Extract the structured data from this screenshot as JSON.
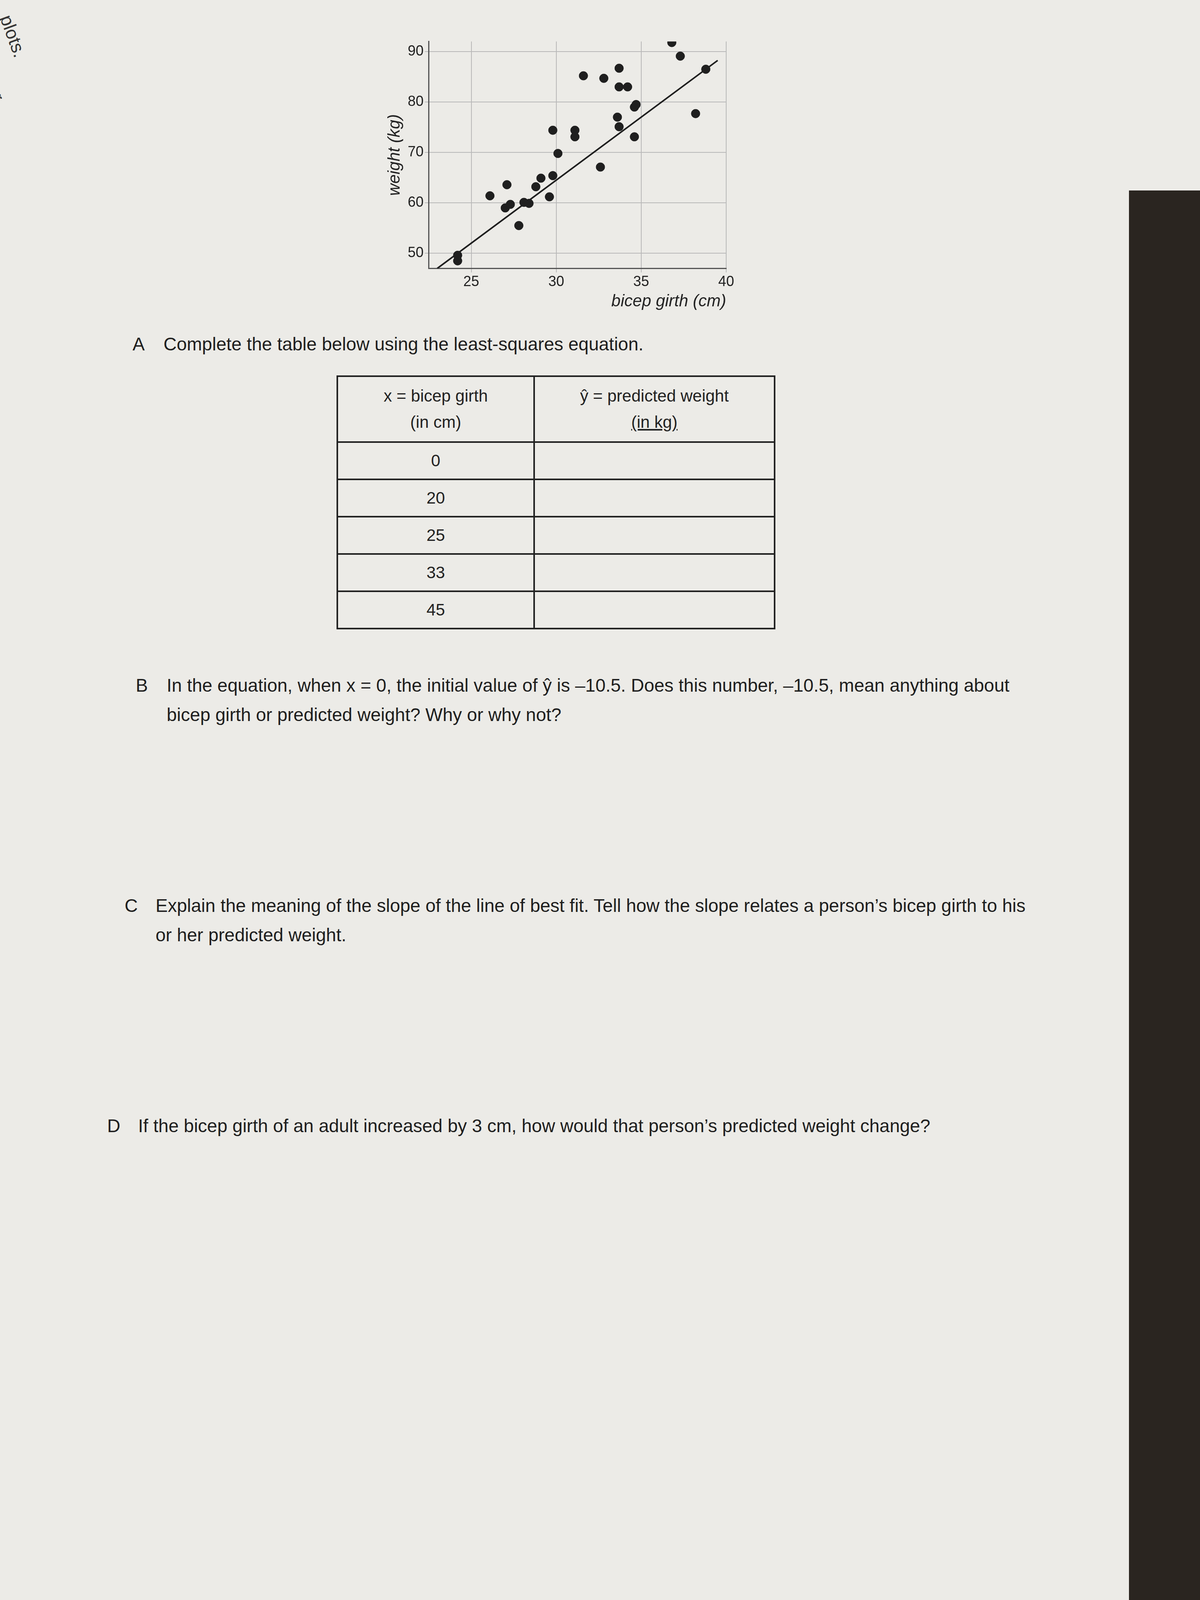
{
  "chart_data": {
    "type": "scatter",
    "x_label": "bicep girth (cm)",
    "y_label": "weight (kg)",
    "xlim": [
      22.5,
      40
    ],
    "ylim": [
      47,
      92
    ],
    "xticks": [
      25,
      30,
      35,
      40
    ],
    "yticks": [
      50,
      60,
      70,
      80,
      90
    ],
    "grid": true,
    "series": [
      {
        "type": "scatter",
        "color": "#1f1f1f",
        "marker": "circle",
        "x": [
          24.2,
          24.2,
          26.1,
          27.1,
          27.0,
          27.3,
          27.8,
          28.1,
          28.4,
          28.8,
          29.1,
          29.6,
          29.8,
          30.1,
          29.8,
          31.1,
          31.1,
          31.6,
          32.6,
          32.8,
          33.7,
          33.7,
          34.2,
          33.6,
          33.7,
          34.6,
          34.7,
          34.6,
          36.8,
          37.3,
          38.8,
          38.2
        ],
        "values": [
          49.6,
          48.5,
          61.4,
          63.6,
          59.0,
          59.7,
          55.5,
          60.1,
          59.9,
          63.2,
          64.9,
          61.2,
          65.4,
          69.8,
          74.4,
          74.4,
          73.1,
          85.2,
          67.1,
          84.7,
          86.7,
          83.0,
          83.0,
          77.0,
          75.1,
          79.0,
          79.5,
          73.1,
          91.8,
          89.1,
          86.5,
          77.7
        ]
      },
      {
        "type": "line",
        "color": "#1f1f1f",
        "line_style": "solid",
        "x": [
          23,
          39.5
        ],
        "values": [
          47,
          88.25
        ]
      }
    ]
  },
  "document": {
    "margin": [
      "plots.",
      "tter"
    ],
    "questions": [
      {
        "letter": "A",
        "text": "Complete the table below using the least-squares equation."
      },
      {
        "letter": "B",
        "text": "In the equation, when x = 0, the initial value of ŷ is –10.5. Does this number, –10.5, mean anything about bicep girth or predicted weight? Why or why not?"
      },
      {
        "letter": "C",
        "text": "Explain the meaning of the slope of the line of best fit. Tell how the slope relates a person’s bicep girth to his or her predicted weight."
      },
      {
        "letter": "D",
        "text": "If the bicep girth of an adult increased by 3 cm, how would that person’s predicted weight change?"
      }
    ],
    "table": {
      "header": [
        [
          "x = bicep girth",
          "(in cm)"
        ],
        [
          "ŷ = predicted weight",
          "(in kg)"
        ]
      ],
      "rows": [
        [
          0,
          null
        ],
        [
          20,
          null
        ],
        [
          25,
          null
        ],
        [
          33,
          null
        ],
        [
          45,
          null
        ]
      ]
    }
  }
}
